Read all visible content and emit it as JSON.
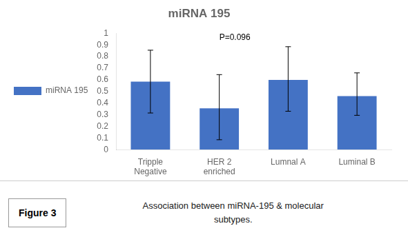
{
  "chart_data": {
    "type": "bar",
    "title": "miRNA 195",
    "categories": [
      "Tripple\nNegative",
      "HER 2\nenriched",
      "Lumnal A",
      "Luminal B"
    ],
    "series": [
      {
        "name": "miRNA 195",
        "color": "#4472C4",
        "values": [
          0.585,
          0.355,
          0.6,
          0.46
        ],
        "error_lower": [
          0.27,
          0.27,
          0.27,
          0.165
        ],
        "error_upper": [
          0.27,
          0.29,
          0.285,
          0.2
        ]
      }
    ],
    "ylim": [
      0,
      1.0
    ],
    "yticks": [
      0,
      0.1,
      0.2,
      0.3,
      0.4,
      0.5,
      0.6,
      0.7,
      0.8,
      0.9,
      1
    ],
    "grid": false,
    "legend": "left",
    "annotations": [
      {
        "text": "P=0.096",
        "x": "HER 2\nenriched",
        "y": 0.93
      }
    ],
    "caption_label": "Figure 3",
    "caption": "Association between miRNA-195 & molecular\nsubtypes."
  }
}
